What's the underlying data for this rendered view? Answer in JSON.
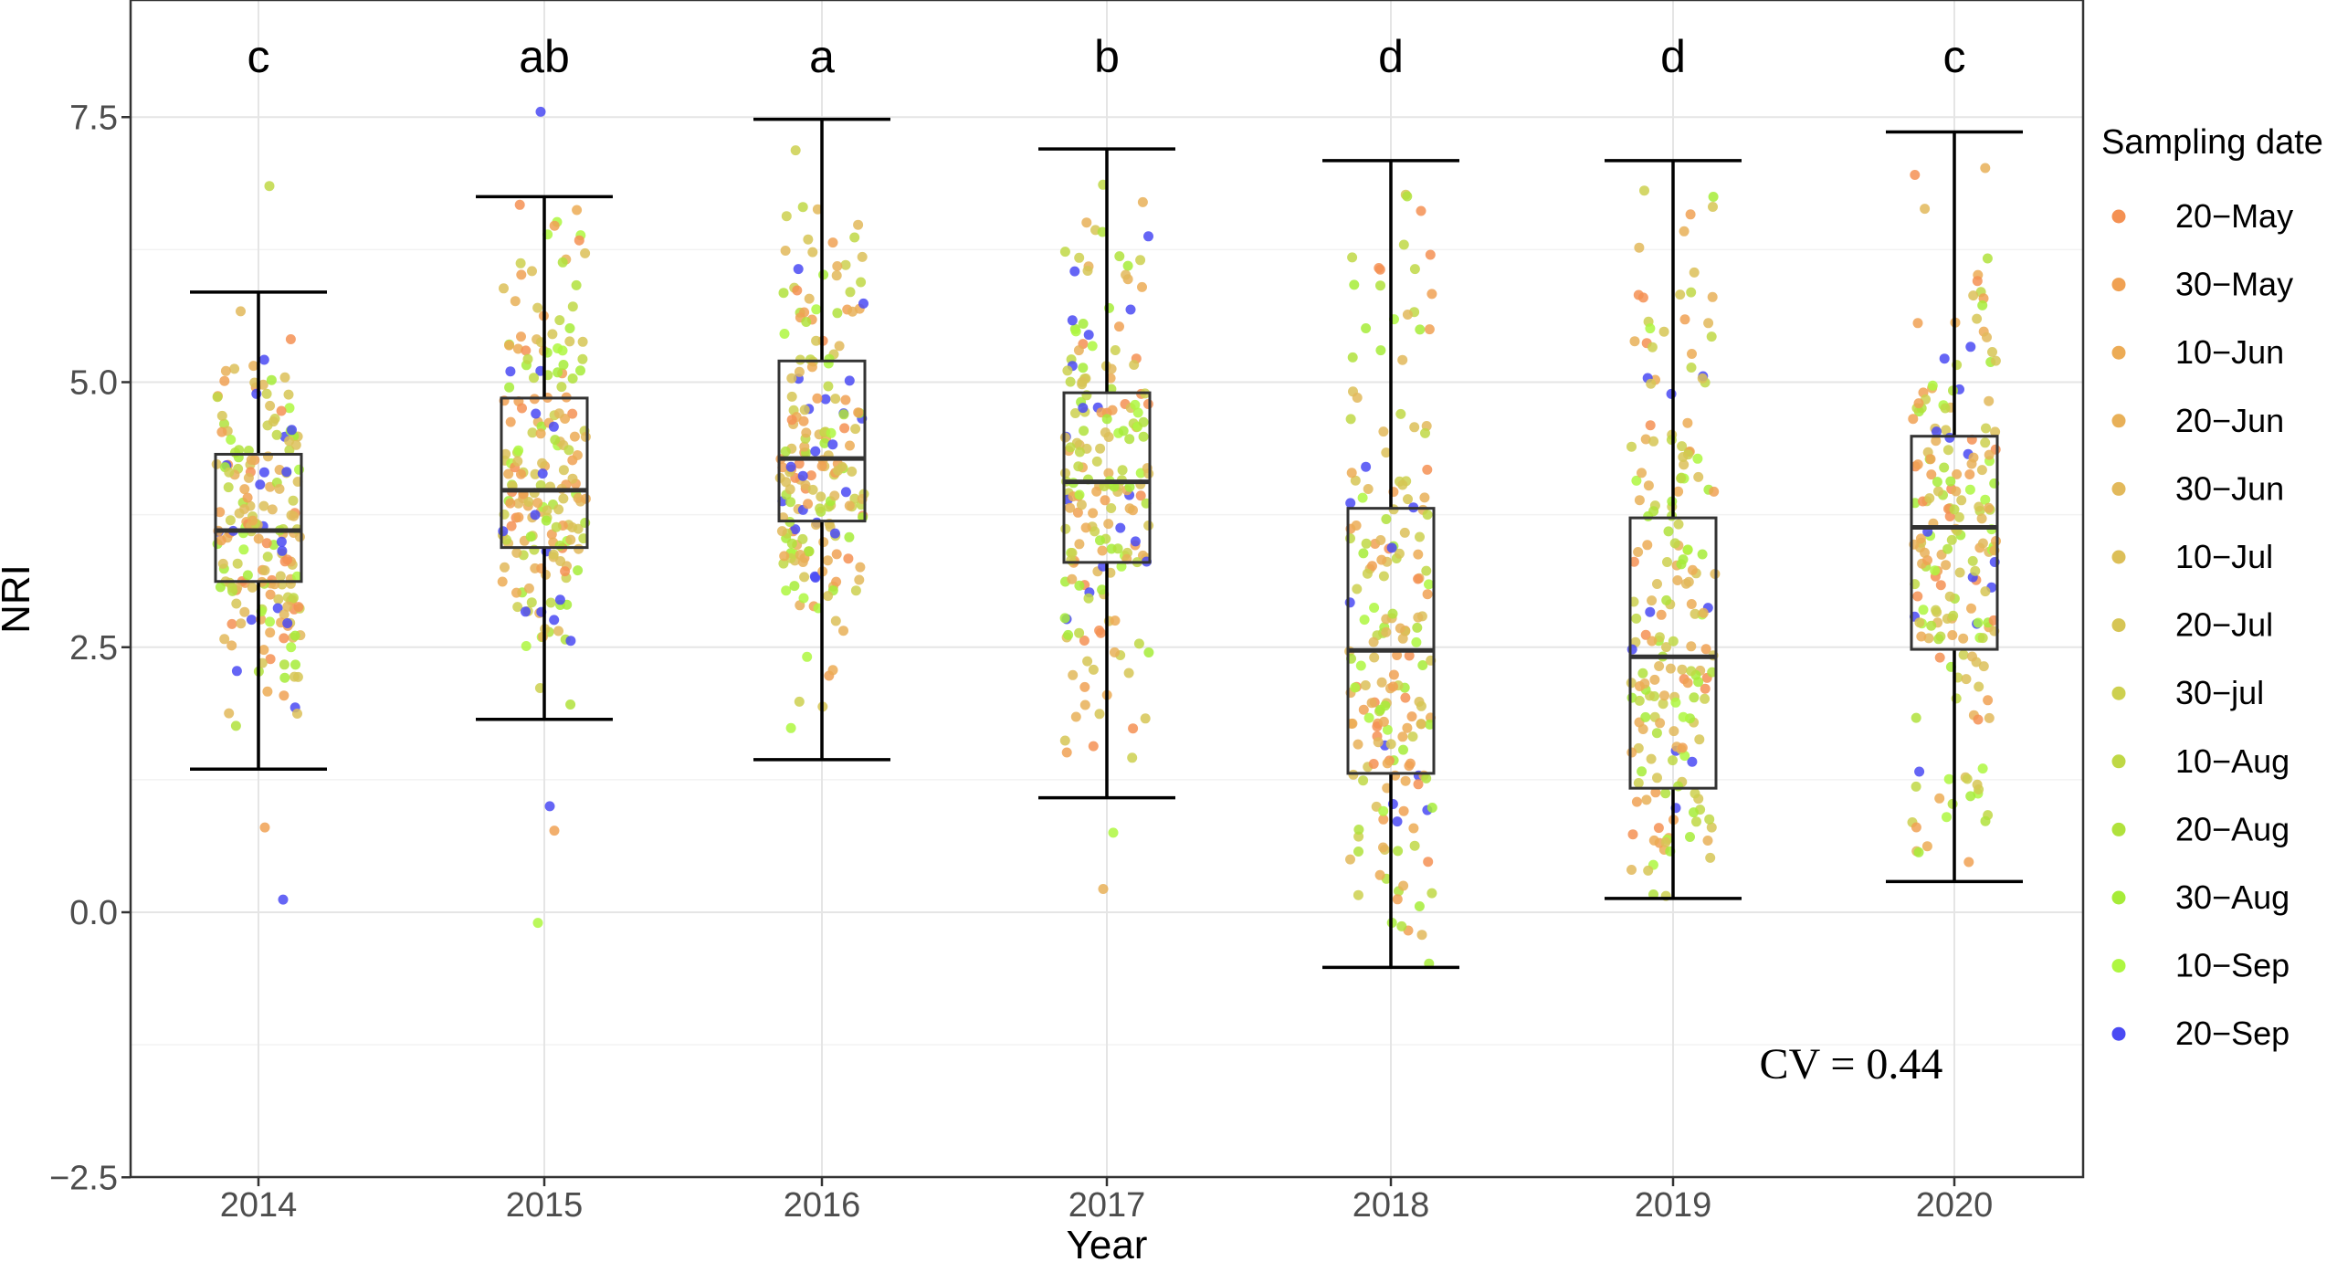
{
  "chart_data": {
    "type": "box",
    "xlabel": "Year",
    "ylabel": "NRI",
    "ylim": [
      -2.5,
      8.5
    ],
    "yticks": [
      -2.5,
      0.0,
      2.5,
      5.0,
      7.5
    ],
    "ytick_labels": [
      "−2.5",
      "0.0",
      "2.5",
      "5.0",
      "7.5"
    ],
    "categories": [
      "2014",
      "2015",
      "2016",
      "2017",
      "2018",
      "2019",
      "2020"
    ],
    "boxes": [
      {
        "year": "2014",
        "whisker_low": 1.35,
        "q1": 3.12,
        "median": 3.6,
        "q3": 4.32,
        "whisker_high": 5.85,
        "letter": "c"
      },
      {
        "year": "2015",
        "whisker_low": 1.82,
        "q1": 3.44,
        "median": 3.98,
        "q3": 4.85,
        "whisker_high": 6.75,
        "letter": "ab"
      },
      {
        "year": "2016",
        "whisker_low": 1.44,
        "q1": 3.69,
        "median": 4.28,
        "q3": 5.2,
        "whisker_high": 7.48,
        "letter": "a"
      },
      {
        "year": "2017",
        "whisker_low": 1.08,
        "q1": 3.3,
        "median": 4.06,
        "q3": 4.9,
        "whisker_high": 7.2,
        "letter": "b"
      },
      {
        "year": "2018",
        "whisker_low": -0.52,
        "q1": 1.31,
        "median": 2.47,
        "q3": 3.81,
        "whisker_high": 7.09,
        "letter": "d"
      },
      {
        "year": "2019",
        "whisker_low": 0.13,
        "q1": 1.17,
        "median": 2.41,
        "q3": 3.72,
        "whisker_high": 7.09,
        "letter": "d"
      },
      {
        "year": "2020",
        "whisker_low": 0.29,
        "q1": 2.48,
        "median": 3.63,
        "q3": 4.49,
        "whisker_high": 7.36,
        "letter": "c"
      }
    ],
    "outliers": [
      {
        "year": "2014",
        "value": 6.85
      },
      {
        "year": "2014",
        "value": 0.12
      },
      {
        "year": "2014",
        "value": 0.8
      },
      {
        "year": "2015",
        "value": 7.55
      },
      {
        "year": "2015",
        "value": 1.0
      },
      {
        "year": "2015",
        "value": 0.77
      },
      {
        "year": "2015",
        "value": -0.1
      },
      {
        "year": "2017",
        "value": 0.22
      },
      {
        "year": "2017",
        "value": 0.75
      }
    ],
    "legend": {
      "title": "Sampling date",
      "position": "right",
      "entries": [
        {
          "label": "20−May",
          "color": "#f49153"
        },
        {
          "label": "30−May",
          "color": "#f0a153"
        },
        {
          "label": "10−Jun",
          "color": "#ecab55"
        },
        {
          "label": "20−Jun",
          "color": "#e8b058"
        },
        {
          "label": "30−Jun",
          "color": "#e2b95b"
        },
        {
          "label": "10−Jul",
          "color": "#dcbf58"
        },
        {
          "label": "20−Jul",
          "color": "#d6c555"
        },
        {
          "label": "30−jul",
          "color": "#cdd04f"
        },
        {
          "label": "10−Aug",
          "color": "#bfd845"
        },
        {
          "label": "20−Aug",
          "color": "#b0e23c"
        },
        {
          "label": "30−Aug",
          "color": "#a6ec38"
        },
        {
          "label": "10−Sep",
          "color": "#aef740"
        },
        {
          "label": "20−Sep",
          "color": "#4a4af3"
        }
      ]
    },
    "annotation": "CV = 0.44",
    "grid": true
  }
}
